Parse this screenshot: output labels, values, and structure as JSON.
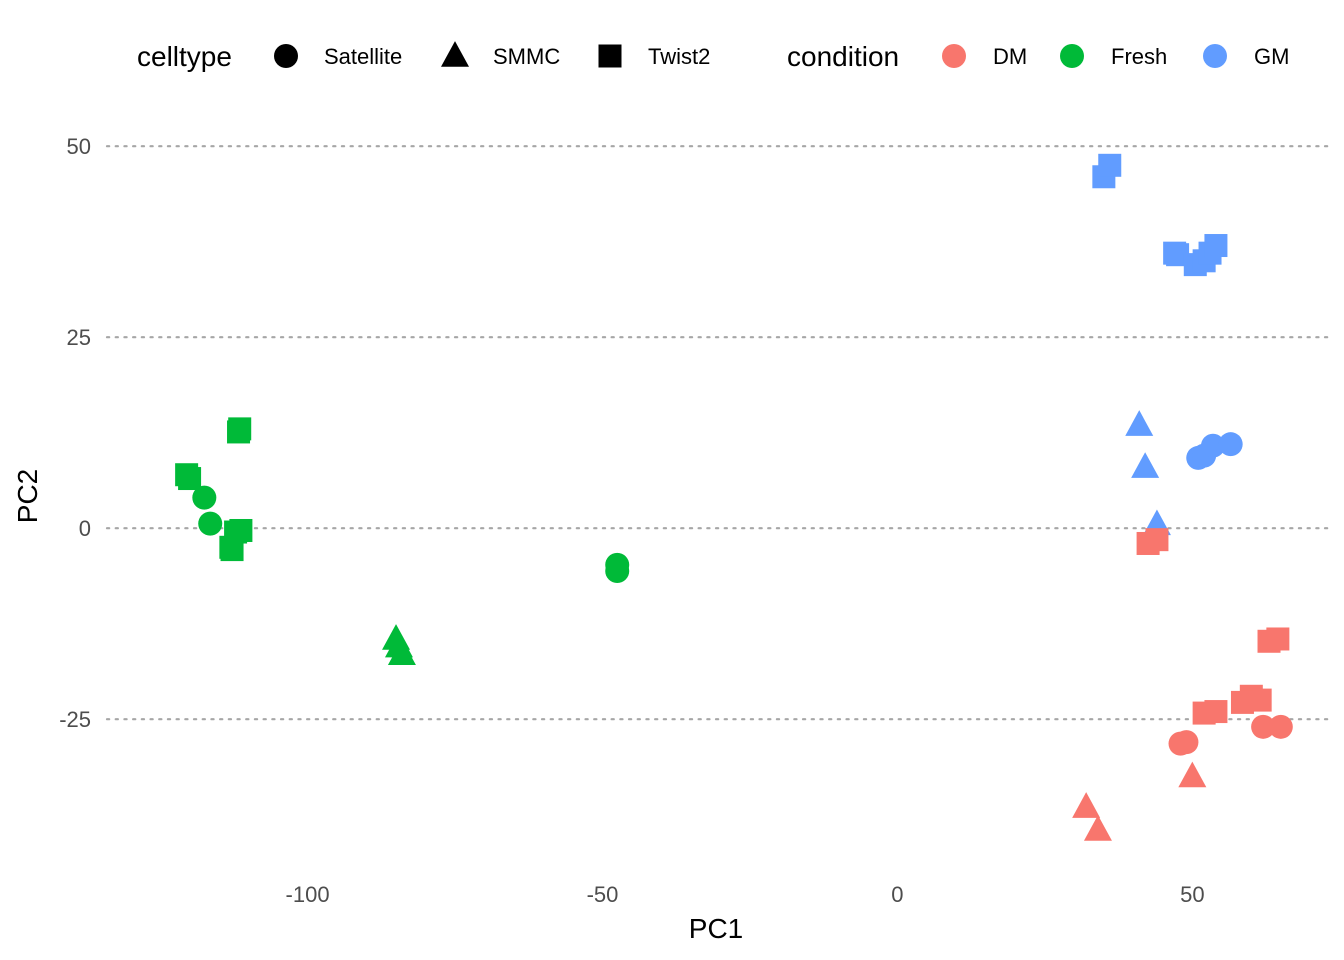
{
  "chart_data": {
    "type": "scatter",
    "xlabel": "PC1",
    "ylabel": "PC2",
    "xlim": [
      -134,
      73
    ],
    "ylim": [
      -45,
      55
    ],
    "x_ticks": [
      -100,
      -50,
      0,
      50
    ],
    "y_ticks": [
      50,
      25,
      0,
      -25
    ],
    "grid": "horizontal dotted major gridlines",
    "legend_position": "top",
    "legends": [
      {
        "title": "celltype",
        "kind": "shape",
        "entries": [
          {
            "label": "Satellite",
            "shape": "circle"
          },
          {
            "label": "SMMC",
            "shape": "triangle"
          },
          {
            "label": "Twist2",
            "shape": "square"
          }
        ]
      },
      {
        "title": "condition",
        "kind": "color",
        "entries": [
          {
            "label": "DM",
            "color": "#F8766D"
          },
          {
            "label": "Fresh",
            "color": "#00BA38"
          },
          {
            "label": "GM",
            "color": "#619CFF"
          }
        ]
      }
    ],
    "points": [
      {
        "x": -120.5,
        "y": 7.0,
        "celltype": "Twist2",
        "condition": "Fresh"
      },
      {
        "x": -120.0,
        "y": 6.5,
        "celltype": "Twist2",
        "condition": "Fresh"
      },
      {
        "x": -111.5,
        "y": 13.0,
        "celltype": "Twist2",
        "condition": "Fresh"
      },
      {
        "x": -111.7,
        "y": 12.6,
        "celltype": "Twist2",
        "condition": "Fresh"
      },
      {
        "x": -112.2,
        "y": -0.5,
        "celltype": "Twist2",
        "condition": "Fresh"
      },
      {
        "x": -111.3,
        "y": -0.3,
        "celltype": "Twist2",
        "condition": "Fresh"
      },
      {
        "x": -113.0,
        "y": -2.5,
        "celltype": "Twist2",
        "condition": "Fresh"
      },
      {
        "x": -112.8,
        "y": -2.8,
        "celltype": "Twist2",
        "condition": "Fresh"
      },
      {
        "x": -117.5,
        "y": 4.0,
        "celltype": "Satellite",
        "condition": "Fresh"
      },
      {
        "x": -116.5,
        "y": 0.6,
        "celltype": "Satellite",
        "condition": "Fresh"
      },
      {
        "x": -47.5,
        "y": -4.8,
        "celltype": "Satellite",
        "condition": "Fresh"
      },
      {
        "x": -47.5,
        "y": -5.6,
        "celltype": "Satellite",
        "condition": "Fresh"
      },
      {
        "x": -85.0,
        "y": -14.5,
        "celltype": "SMMC",
        "condition": "Fresh"
      },
      {
        "x": -84.5,
        "y": -15.5,
        "celltype": "SMMC",
        "condition": "Fresh"
      },
      {
        "x": -84.0,
        "y": -16.5,
        "celltype": "SMMC",
        "condition": "Fresh"
      },
      {
        "x": 35.0,
        "y": 46.0,
        "celltype": "Twist2",
        "condition": "GM"
      },
      {
        "x": 36.0,
        "y": 47.5,
        "celltype": "Twist2",
        "condition": "GM"
      },
      {
        "x": 47.0,
        "y": 36.0,
        "celltype": "Twist2",
        "condition": "GM"
      },
      {
        "x": 47.5,
        "y": 35.8,
        "celltype": "Twist2",
        "condition": "GM"
      },
      {
        "x": 50.5,
        "y": 34.5,
        "celltype": "Twist2",
        "condition": "GM"
      },
      {
        "x": 52.0,
        "y": 35.0,
        "celltype": "Twist2",
        "condition": "GM"
      },
      {
        "x": 53.0,
        "y": 36.0,
        "celltype": "Twist2",
        "condition": "GM"
      },
      {
        "x": 54.0,
        "y": 37.0,
        "celltype": "Twist2",
        "condition": "GM"
      },
      {
        "x": 41.0,
        "y": 13.5,
        "celltype": "SMMC",
        "condition": "GM"
      },
      {
        "x": 42.0,
        "y": 8.0,
        "celltype": "SMMC",
        "condition": "GM"
      },
      {
        "x": 44.0,
        "y": 0.5,
        "celltype": "SMMC",
        "condition": "GM"
      },
      {
        "x": 51.0,
        "y": 9.2,
        "celltype": "Satellite",
        "condition": "GM"
      },
      {
        "x": 52.0,
        "y": 9.5,
        "celltype": "Satellite",
        "condition": "GM"
      },
      {
        "x": 53.5,
        "y": 10.8,
        "celltype": "Satellite",
        "condition": "GM"
      },
      {
        "x": 56.5,
        "y": 11.0,
        "celltype": "Satellite",
        "condition": "GM"
      },
      {
        "x": 42.5,
        "y": -2.0,
        "celltype": "Twist2",
        "condition": "DM"
      },
      {
        "x": 44.0,
        "y": -1.5,
        "celltype": "Twist2",
        "condition": "DM"
      },
      {
        "x": 63.0,
        "y": -14.8,
        "celltype": "Twist2",
        "condition": "DM"
      },
      {
        "x": 64.5,
        "y": -14.5,
        "celltype": "Twist2",
        "condition": "DM"
      },
      {
        "x": 60.0,
        "y": -22.0,
        "celltype": "Twist2",
        "condition": "DM"
      },
      {
        "x": 61.5,
        "y": -22.5,
        "celltype": "Twist2",
        "condition": "DM"
      },
      {
        "x": 58.5,
        "y": -22.8,
        "celltype": "Twist2",
        "condition": "DM"
      },
      {
        "x": 52.0,
        "y": -24.2,
        "celltype": "Twist2",
        "condition": "DM"
      },
      {
        "x": 54.0,
        "y": -24.0,
        "celltype": "Twist2",
        "condition": "DM"
      },
      {
        "x": 48.0,
        "y": -28.2,
        "celltype": "Satellite",
        "condition": "DM"
      },
      {
        "x": 49.0,
        "y": -28.0,
        "celltype": "Satellite",
        "condition": "DM"
      },
      {
        "x": 62.0,
        "y": -26.0,
        "celltype": "Satellite",
        "condition": "DM"
      },
      {
        "x": 65.0,
        "y": -26.0,
        "celltype": "Satellite",
        "condition": "DM"
      },
      {
        "x": 50.0,
        "y": -32.5,
        "celltype": "SMMC",
        "condition": "DM"
      },
      {
        "x": 32.0,
        "y": -36.5,
        "celltype": "SMMC",
        "condition": "DM"
      },
      {
        "x": 34.0,
        "y": -39.5,
        "celltype": "SMMC",
        "condition": "DM"
      }
    ]
  }
}
